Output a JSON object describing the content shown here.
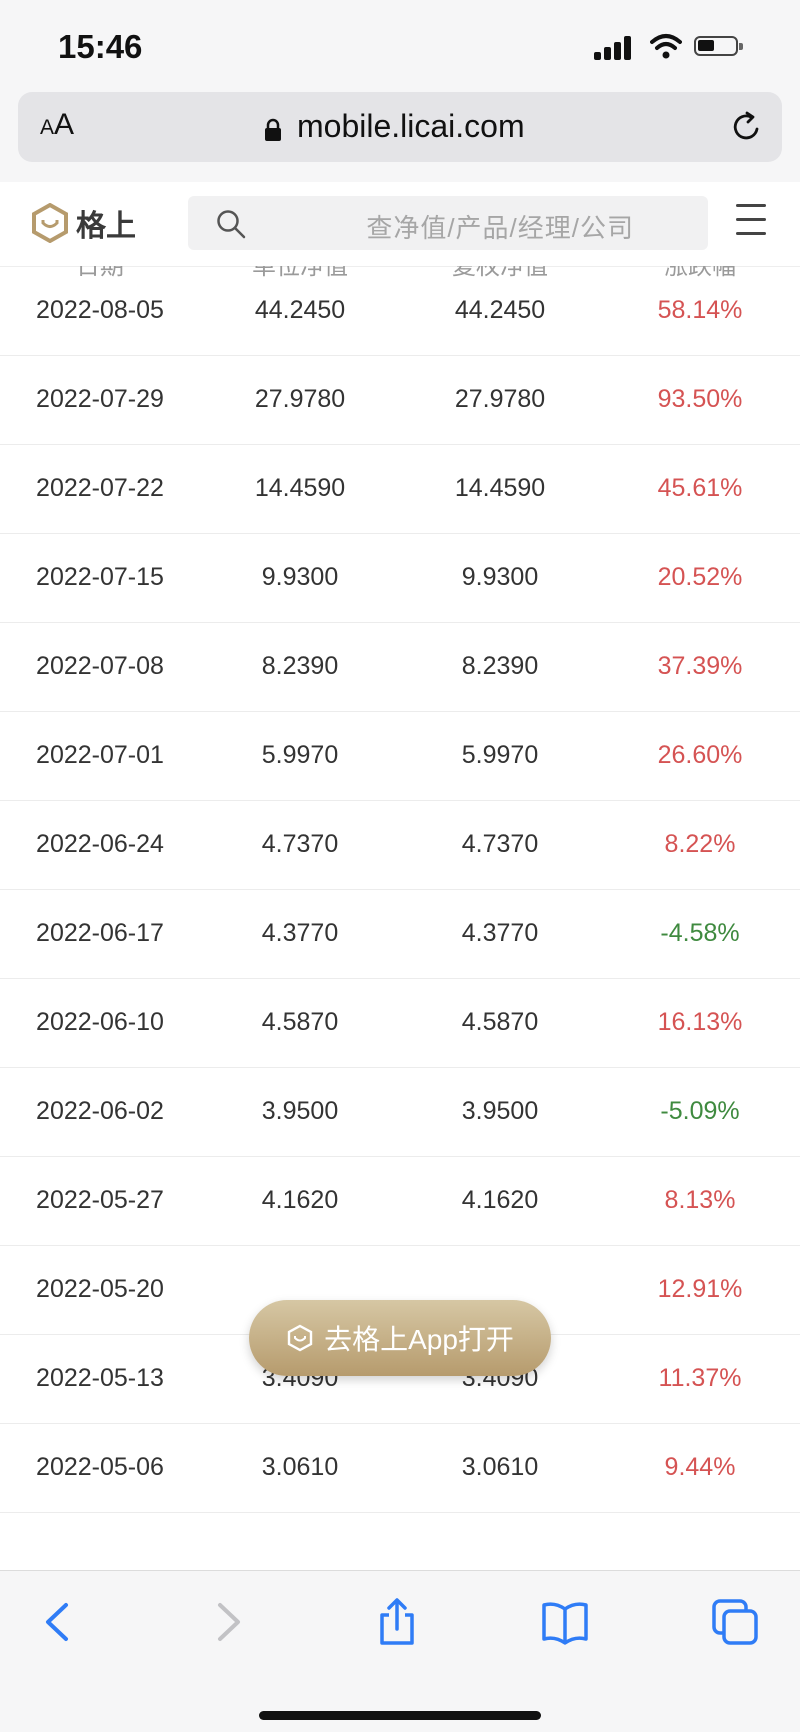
{
  "status": {
    "time": "15:46"
  },
  "browser": {
    "text_size_label_small": "A",
    "text_size_label_large": "A",
    "url": "mobile.licai.com"
  },
  "site": {
    "logo_text": "格上",
    "search_placeholder": "查净值/产品/经理/公司"
  },
  "table": {
    "headers": [
      "日期",
      "单位净值",
      "复权净值",
      "涨跌幅"
    ],
    "rows": [
      {
        "date": "2022-08-05",
        "unit_nav": "44.2450",
        "adj_nav": "44.2450",
        "change": "58.14%",
        "dir": "up"
      },
      {
        "date": "2022-07-29",
        "unit_nav": "27.9780",
        "adj_nav": "27.9780",
        "change": "93.50%",
        "dir": "up"
      },
      {
        "date": "2022-07-22",
        "unit_nav": "14.4590",
        "adj_nav": "14.4590",
        "change": "45.61%",
        "dir": "up"
      },
      {
        "date": "2022-07-15",
        "unit_nav": "9.9300",
        "adj_nav": "9.9300",
        "change": "20.52%",
        "dir": "up"
      },
      {
        "date": "2022-07-08",
        "unit_nav": "8.2390",
        "adj_nav": "8.2390",
        "change": "37.39%",
        "dir": "up"
      },
      {
        "date": "2022-07-01",
        "unit_nav": "5.9970",
        "adj_nav": "5.9970",
        "change": "26.60%",
        "dir": "up"
      },
      {
        "date": "2022-06-24",
        "unit_nav": "4.7370",
        "adj_nav": "4.7370",
        "change": "8.22%",
        "dir": "up"
      },
      {
        "date": "2022-06-17",
        "unit_nav": "4.3770",
        "adj_nav": "4.3770",
        "change": "-4.58%",
        "dir": "down"
      },
      {
        "date": "2022-06-10",
        "unit_nav": "4.5870",
        "adj_nav": "4.5870",
        "change": "16.13%",
        "dir": "up"
      },
      {
        "date": "2022-06-02",
        "unit_nav": "3.9500",
        "adj_nav": "3.9500",
        "change": "-5.09%",
        "dir": "down"
      },
      {
        "date": "2022-05-27",
        "unit_nav": "4.1620",
        "adj_nav": "4.1620",
        "change": "8.13%",
        "dir": "up"
      },
      {
        "date": "2022-05-20",
        "unit_nav": "",
        "adj_nav": "",
        "change": "12.91%",
        "dir": "up"
      },
      {
        "date": "2022-05-13",
        "unit_nav": "3.4090",
        "adj_nav": "3.4090",
        "change": "11.37%",
        "dir": "up"
      },
      {
        "date": "2022-05-06",
        "unit_nav": "3.0610",
        "adj_nav": "3.0610",
        "change": "9.44%",
        "dir": "up"
      }
    ]
  },
  "open_app_button": {
    "label": "去格上App打开"
  },
  "colors": {
    "up": "#d55353",
    "down": "#3f8a3f",
    "gold": "#b69b6d",
    "ios_blue": "#2f7cf6"
  },
  "toolbar_icons": [
    "back-icon",
    "forward-icon",
    "share-icon",
    "bookmarks-icon",
    "tabs-icon"
  ]
}
